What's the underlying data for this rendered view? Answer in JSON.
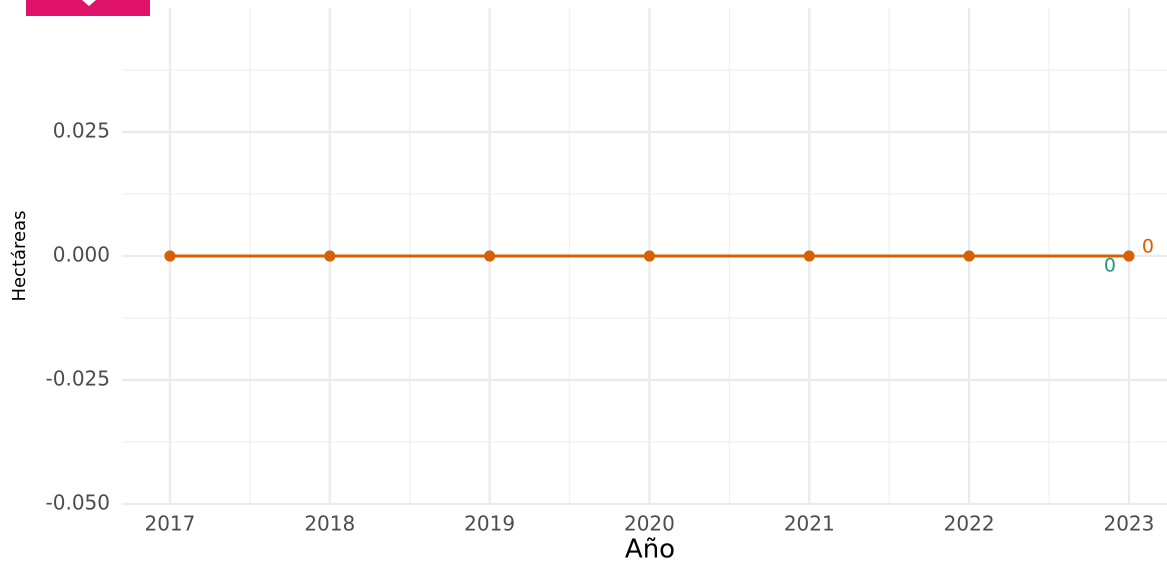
{
  "chart_data": {
    "type": "line",
    "x_label": "Año",
    "y_label": "Hectáreas",
    "x": [
      2017,
      2018,
      2019,
      2020,
      2021,
      2022,
      2023
    ],
    "series": [
      {
        "color": "#1b9e77",
        "values": [
          0,
          0,
          0,
          0,
          0,
          0,
          0
        ]
      },
      {
        "color": "#d95f02",
        "values": [
          0,
          0,
          0,
          0,
          0,
          0,
          0
        ]
      }
    ],
    "xlim": [
      2016.7,
      2023.3
    ],
    "xticks": [
      2017,
      2018,
      2019,
      2020,
      2021,
      2022,
      2023
    ],
    "ylim": [
      -0.05,
      0.05
    ],
    "yticks": [
      {
        "value": -0.05,
        "label": "-0.050"
      },
      {
        "value": -0.025,
        "label": "-0.025"
      },
      {
        "value": 0,
        "label": "0.000"
      },
      {
        "value": 0.025,
        "label": "0.025"
      }
    ],
    "grid": true
  }
}
